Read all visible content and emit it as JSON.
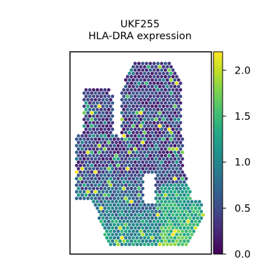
{
  "chart_data": {
    "type": "scatter",
    "title_line1": "UKF255",
    "title_line2": "HLA-DRA expression",
    "xlabel": "",
    "ylabel": "",
    "colorbar": {
      "colormap": "viridis",
      "vmin": 0.0,
      "vmax": 2.2,
      "ticks": [
        0.0,
        0.5,
        1.0,
        1.5,
        2.0
      ],
      "tick_labels": [
        "0.0",
        "0.5",
        "1.0",
        "1.5",
        "2.0"
      ]
    },
    "marker": "hexagon",
    "grid": false,
    "axes_ticks_visible": false,
    "colors": {
      "low": "#440154",
      "mid": "#21918c",
      "high": "#fde725",
      "frame": "#000000"
    }
  }
}
